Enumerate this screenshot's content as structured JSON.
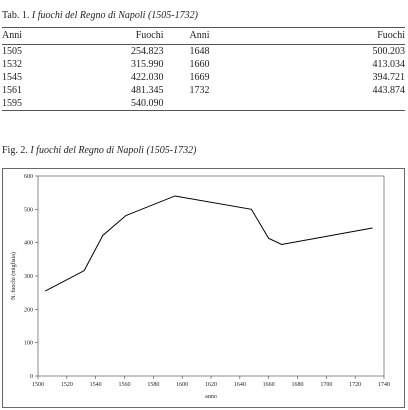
{
  "table_caption": {
    "label": "Tab. 1.",
    "title": "I fuochi del Regno di Napoli (1505-1732)"
  },
  "table": {
    "header": [
      "Anni",
      "Fuochi",
      "Anni",
      "Fuochi"
    ],
    "rows": [
      [
        "1505",
        "254.823",
        "1648",
        "500.203"
      ],
      [
        "1532",
        "315.990",
        "1660",
        "413.034"
      ],
      [
        "1545",
        "422.030",
        "1669",
        "394.721"
      ],
      [
        "1561",
        "481.345",
        "1732",
        "443.874"
      ],
      [
        "1595",
        "540.090"
      ]
    ]
  },
  "figure_caption": {
    "label": "Fig. 2.",
    "title": "I fuochi del Regno di Napoli (1505-1732)"
  },
  "chart_data": {
    "type": "line",
    "xlabel": "anno",
    "ylabel": "N. fuochi (migliaia)",
    "x": [
      1505,
      1532,
      1545,
      1561,
      1595,
      1648,
      1660,
      1669,
      1732
    ],
    "values": [
      254.823,
      315.99,
      422.03,
      481.345,
      540.09,
      500.203,
      413.034,
      394.721,
      443.874
    ],
    "color": "#000000",
    "xlim": [
      1500,
      1740
    ],
    "xticks": [
      1500,
      1520,
      1540,
      1560,
      1580,
      1600,
      1620,
      1640,
      1660,
      1680,
      1700,
      1720,
      1740
    ],
    "ylim": [
      0,
      600
    ],
    "yticks": [
      0,
      100,
      200,
      300,
      400,
      500,
      600
    ]
  }
}
